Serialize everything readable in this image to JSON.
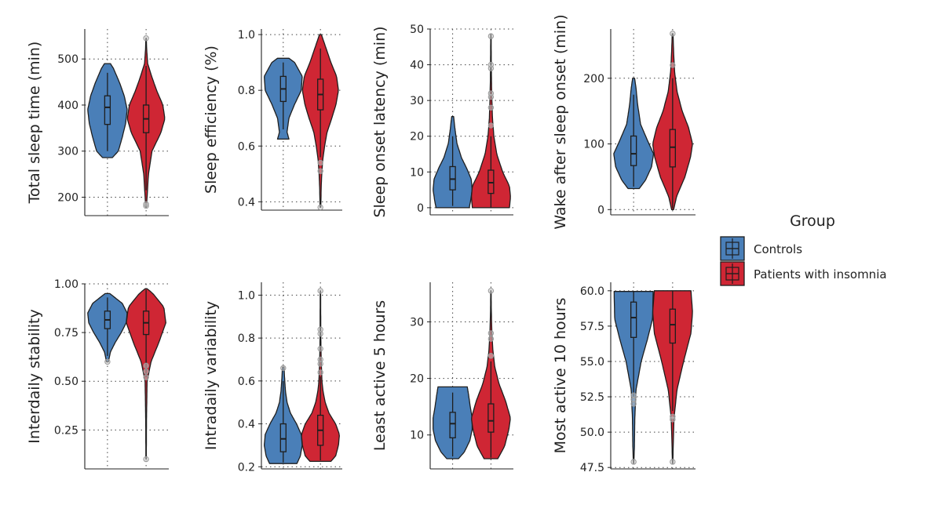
{
  "colors": {
    "controls": "#4a7fb8",
    "insomnia": "#cf2634",
    "outline": "#1e1e1e",
    "grid": "#444444"
  },
  "legend": {
    "title": "Group",
    "entries": [
      {
        "label": "Controls",
        "color": "#4a7fb8"
      },
      {
        "label": "Patients with insomnia",
        "color": "#cf2634"
      }
    ]
  },
  "chart_data": [
    {
      "type": "violin",
      "ylabel": "Total sleep time (min)",
      "ylim": [
        160,
        565
      ],
      "yticks": [
        200,
        300,
        400,
        500
      ],
      "yticklabels": [
        "200",
        "300",
        "400",
        "500"
      ],
      "grid": true,
      "series": [
        {
          "name": "Controls",
          "min": 286,
          "max": 490,
          "q1": 358,
          "median": 395,
          "q3": 420,
          "whisker_low": 300,
          "whisker_high": 470,
          "density": [
            [
              286,
              0.25
            ],
            [
              300,
              0.55
            ],
            [
              330,
              0.75
            ],
            [
              360,
              0.92
            ],
            [
              390,
              1.0
            ],
            [
              420,
              0.85
            ],
            [
              450,
              0.6
            ],
            [
              480,
              0.3
            ],
            [
              490,
              0.15
            ]
          ],
          "outliers": []
        },
        {
          "name": "Patients with insomnia",
          "min": 178,
          "max": 545,
          "q1": 340,
          "median": 370,
          "q3": 400,
          "whisker_low": 215,
          "whisker_high": 485,
          "density": [
            [
              178,
              0.02
            ],
            [
              200,
              0.05
            ],
            [
              250,
              0.12
            ],
            [
              300,
              0.3
            ],
            [
              340,
              0.75
            ],
            [
              370,
              0.95
            ],
            [
              400,
              0.85
            ],
            [
              430,
              0.55
            ],
            [
              460,
              0.3
            ],
            [
              490,
              0.08
            ],
            [
              520,
              0.03
            ],
            [
              545,
              0.01
            ]
          ],
          "outliers": [
            181,
            185,
            545
          ]
        }
      ]
    },
    {
      "type": "violin",
      "ylabel": "Sleep efficiency (%)",
      "ylim": [
        0.37,
        1.02
      ],
      "yticks": [
        0.4,
        0.6,
        0.8,
        1.0
      ],
      "yticklabels": [
        "0.4",
        "0.6",
        "0.8",
        "1.0"
      ],
      "grid": true,
      "series": [
        {
          "name": "Controls",
          "min": 0.625,
          "max": 0.915,
          "q1": 0.76,
          "median": 0.805,
          "q3": 0.85,
          "whisker_low": 0.66,
          "whisker_high": 0.9,
          "density": [
            [
              0.625,
              0.3
            ],
            [
              0.65,
              0.2
            ],
            [
              0.7,
              0.3
            ],
            [
              0.75,
              0.6
            ],
            [
              0.8,
              0.95
            ],
            [
              0.85,
              1.0
            ],
            [
              0.9,
              0.6
            ],
            [
              0.915,
              0.3
            ]
          ],
          "outliers": []
        },
        {
          "name": "Patients with insomnia",
          "min": 0.38,
          "max": 1.0,
          "q1": 0.73,
          "median": 0.785,
          "q3": 0.84,
          "whisker_low": 0.56,
          "whisker_high": 0.95,
          "density": [
            [
              0.38,
              0.02
            ],
            [
              0.45,
              0.04
            ],
            [
              0.5,
              0.07
            ],
            [
              0.55,
              0.12
            ],
            [
              0.6,
              0.22
            ],
            [
              0.65,
              0.35
            ],
            [
              0.7,
              0.6
            ],
            [
              0.75,
              0.82
            ],
            [
              0.8,
              0.95
            ],
            [
              0.85,
              0.85
            ],
            [
              0.9,
              0.55
            ],
            [
              0.95,
              0.3
            ],
            [
              1.0,
              0.05
            ]
          ],
          "outliers": [
            0.38,
            0.51,
            0.54
          ]
        }
      ]
    },
    {
      "type": "violin",
      "ylabel": "Sleep onset latency (min)",
      "ylim": [
        -2,
        50
      ],
      "yticks": [
        0,
        10,
        20,
        30,
        40,
        50
      ],
      "yticklabels": [
        "0",
        "10",
        "20",
        "30",
        "40",
        "50"
      ],
      "grid": true,
      "series": [
        {
          "name": "Controls",
          "min": 0,
          "max": 25.5,
          "q1": 5,
          "median": 8,
          "q3": 11.5,
          "whisker_low": 0.5,
          "whisker_high": 20,
          "density": [
            [
              0,
              0.85
            ],
            [
              2,
              0.92
            ],
            [
              5,
              1.0
            ],
            [
              8,
              0.95
            ],
            [
              11,
              0.72
            ],
            [
              14,
              0.45
            ],
            [
              18,
              0.22
            ],
            [
              22,
              0.12
            ],
            [
              25.5,
              0.05
            ]
          ],
          "outliers": []
        },
        {
          "name": "Patients with insomnia",
          "min": 0,
          "max": 48.5,
          "q1": 4,
          "median": 7,
          "q3": 10.5,
          "whisker_low": 0,
          "whisker_high": 20,
          "density": [
            [
              0,
              0.95
            ],
            [
              3,
              1.0
            ],
            [
              6,
              0.95
            ],
            [
              10,
              0.6
            ],
            [
              15,
              0.3
            ],
            [
              20,
              0.15
            ],
            [
              25,
              0.08
            ],
            [
              30,
              0.05
            ],
            [
              35,
              0.03
            ],
            [
              40,
              0.02
            ],
            [
              48.5,
              0.01
            ]
          ],
          "outliers": [
            23,
            28,
            31,
            32,
            39,
            40,
            48
          ]
        }
      ]
    },
    {
      "type": "violin",
      "ylabel": "Wake after sleep onset (min)",
      "ylim": [
        -8,
        275
      ],
      "yticks": [
        0,
        100,
        200
      ],
      "yticklabels": [
        "0",
        "100",
        "200"
      ],
      "grid": true,
      "series": [
        {
          "name": "Controls",
          "min": 32,
          "max": 200,
          "q1": 67,
          "median": 85,
          "q3": 112,
          "whisker_low": 35,
          "whisker_high": 175,
          "density": [
            [
              32,
              0.28
            ],
            [
              45,
              0.6
            ],
            [
              65,
              0.9
            ],
            [
              85,
              1.0
            ],
            [
              105,
              0.7
            ],
            [
              130,
              0.35
            ],
            [
              160,
              0.2
            ],
            [
              185,
              0.12
            ],
            [
              200,
              0.05
            ]
          ],
          "outliers": []
        },
        {
          "name": "Patients with insomnia",
          "min": 0,
          "max": 268,
          "q1": 65,
          "median": 95,
          "q3": 122,
          "whisker_low": 2,
          "whisker_high": 200,
          "density": [
            [
              0,
              0.05
            ],
            [
              20,
              0.2
            ],
            [
              50,
              0.62
            ],
            [
              80,
              0.9
            ],
            [
              100,
              1.0
            ],
            [
              125,
              0.8
            ],
            [
              150,
              0.48
            ],
            [
              180,
              0.22
            ],
            [
              210,
              0.1
            ],
            [
              240,
              0.05
            ],
            [
              268,
              0.02
            ]
          ],
          "outliers": [
            220,
            268
          ]
        }
      ]
    },
    {
      "type": "violin",
      "ylabel": "Interdaily stability",
      "ylim": [
        0.05,
        1.0
      ],
      "yticks": [
        0.25,
        0.5,
        0.75,
        1.0
      ],
      "yticklabels": [
        "0.25",
        "0.50",
        "0.75",
        "1.00"
      ],
      "grid": true,
      "series": [
        {
          "name": "Controls",
          "min": 0.6,
          "max": 0.95,
          "q1": 0.77,
          "median": 0.815,
          "q3": 0.86,
          "whisker_low": 0.63,
          "whisker_high": 0.93,
          "density": [
            [
              0.6,
              0.05
            ],
            [
              0.65,
              0.15
            ],
            [
              0.7,
              0.4
            ],
            [
              0.75,
              0.7
            ],
            [
              0.8,
              0.95
            ],
            [
              0.85,
              1.0
            ],
            [
              0.9,
              0.75
            ],
            [
              0.95,
              0.12
            ]
          ],
          "outliers": [
            0.6
          ]
        },
        {
          "name": "Patients with insomnia",
          "min": 0.1,
          "max": 0.975,
          "q1": 0.74,
          "median": 0.8,
          "q3": 0.86,
          "whisker_low": 0.52,
          "whisker_high": 0.97,
          "density": [
            [
              0.1,
              0.01
            ],
            [
              0.3,
              0.02
            ],
            [
              0.5,
              0.05
            ],
            [
              0.6,
              0.25
            ],
            [
              0.7,
              0.65
            ],
            [
              0.8,
              1.0
            ],
            [
              0.88,
              0.9
            ],
            [
              0.95,
              0.35
            ],
            [
              0.975,
              0.05
            ]
          ],
          "outliers": [
            0.1,
            0.52,
            0.55,
            0.58
          ]
        }
      ]
    },
    {
      "type": "violin",
      "ylabel": "Intradaily variability",
      "ylim": [
        0.19,
        1.06
      ],
      "yticks": [
        0.2,
        0.4,
        0.6,
        0.8,
        1.0
      ],
      "yticklabels": [
        "0.2",
        "0.4",
        "0.6",
        "0.8",
        "1.0"
      ],
      "grid": true,
      "series": [
        {
          "name": "Controls",
          "min": 0.215,
          "max": 0.665,
          "q1": 0.27,
          "median": 0.33,
          "q3": 0.4,
          "whisker_low": 0.22,
          "whisker_high": 0.6,
          "density": [
            [
              0.215,
              0.72
            ],
            [
              0.25,
              0.9
            ],
            [
              0.3,
              1.0
            ],
            [
              0.35,
              0.95
            ],
            [
              0.4,
              0.7
            ],
            [
              0.45,
              0.38
            ],
            [
              0.5,
              0.2
            ],
            [
              0.55,
              0.12
            ],
            [
              0.6,
              0.08
            ],
            [
              0.665,
              0.04
            ]
          ],
          "outliers": [
            0.66
          ]
        },
        {
          "name": "Patients with insomnia",
          "min": 0.225,
          "max": 1.02,
          "q1": 0.3,
          "median": 0.37,
          "q3": 0.44,
          "whisker_low": 0.23,
          "whisker_high": 0.62,
          "density": [
            [
              0.225,
              0.55
            ],
            [
              0.25,
              0.8
            ],
            [
              0.3,
              0.95
            ],
            [
              0.35,
              1.0
            ],
            [
              0.4,
              0.8
            ],
            [
              0.45,
              0.45
            ],
            [
              0.5,
              0.25
            ],
            [
              0.55,
              0.14
            ],
            [
              0.6,
              0.08
            ],
            [
              0.7,
              0.04
            ],
            [
              0.8,
              0.02
            ],
            [
              1.02,
              0.01
            ]
          ],
          "outliers": [
            0.64,
            0.68,
            0.7,
            0.75,
            0.82,
            0.84,
            1.02
          ]
        }
      ]
    },
    {
      "type": "violin",
      "ylabel": "Least active 5 hours",
      "ylim": [
        4,
        37
      ],
      "yticks": [
        10,
        20,
        30
      ],
      "yticklabels": [
        "10",
        "20",
        "30"
      ],
      "grid": true,
      "series": [
        {
          "name": "Controls",
          "min": 5.8,
          "max": 18.5,
          "q1": 9.5,
          "median": 12,
          "q3": 14,
          "whisker_low": 6.2,
          "whisker_high": 17.5,
          "density": [
            [
              5.8,
              0.3
            ],
            [
              7,
              0.6
            ],
            [
              9,
              0.88
            ],
            [
              11,
              1.0
            ],
            [
              13,
              1.0
            ],
            [
              15,
              0.9
            ],
            [
              17,
              0.82
            ],
            [
              18.5,
              0.75
            ]
          ],
          "outliers": []
        },
        {
          "name": "Patients with insomnia",
          "min": 5.8,
          "max": 35.5,
          "q1": 10.5,
          "median": 12.5,
          "q3": 15.5,
          "whisker_low": 6,
          "whisker_high": 23,
          "density": [
            [
              5.8,
              0.35
            ],
            [
              8,
              0.7
            ],
            [
              11,
              0.92
            ],
            [
              13,
              1.0
            ],
            [
              16,
              0.75
            ],
            [
              19,
              0.42
            ],
            [
              22,
              0.2
            ],
            [
              25,
              0.1
            ],
            [
              28,
              0.05
            ],
            [
              32,
              0.02
            ],
            [
              35.5,
              0.01
            ]
          ],
          "outliers": [
            24,
            27,
            28,
            35.5
          ]
        }
      ]
    },
    {
      "type": "violin",
      "ylabel": "Most active 10 hours",
      "ylim": [
        47.4,
        60.6
      ],
      "yticks": [
        47.5,
        50.0,
        52.5,
        55.0,
        57.5,
        60.0
      ],
      "yticklabels": [
        "47.5",
        "50.0",
        "52.5",
        "55.0",
        "57.5",
        "60.0"
      ],
      "grid": true,
      "series": [
        {
          "name": "Controls",
          "min": 47.8,
          "max": 59.95,
          "q1": 56.7,
          "median": 58.1,
          "q3": 59.2,
          "whisker_low": 52.5,
          "whisker_high": 59.95,
          "density": [
            [
              47.8,
              0.01
            ],
            [
              49,
              0.04
            ],
            [
              51,
              0.06
            ],
            [
              53,
              0.12
            ],
            [
              55,
              0.38
            ],
            [
              56.5,
              0.68
            ],
            [
              58,
              0.95
            ],
            [
              59.95,
              0.98
            ]
          ],
          "outliers": [
            47.9,
            52.0,
            52.3,
            52.6
          ]
        },
        {
          "name": "Patients with insomnia",
          "min": 47.8,
          "max": 60.0,
          "q1": 56.3,
          "median": 57.6,
          "q3": 58.7,
          "whisker_low": 51.5,
          "whisker_high": 60.0,
          "density": [
            [
              47.8,
              0.01
            ],
            [
              49,
              0.03
            ],
            [
              51,
              0.07
            ],
            [
              53,
              0.22
            ],
            [
              55,
              0.55
            ],
            [
              57,
              0.92
            ],
            [
              58.5,
              1.0
            ],
            [
              60.0,
              0.92
            ]
          ],
          "outliers": [
            47.9,
            50.9,
            51.1
          ]
        }
      ]
    }
  ]
}
